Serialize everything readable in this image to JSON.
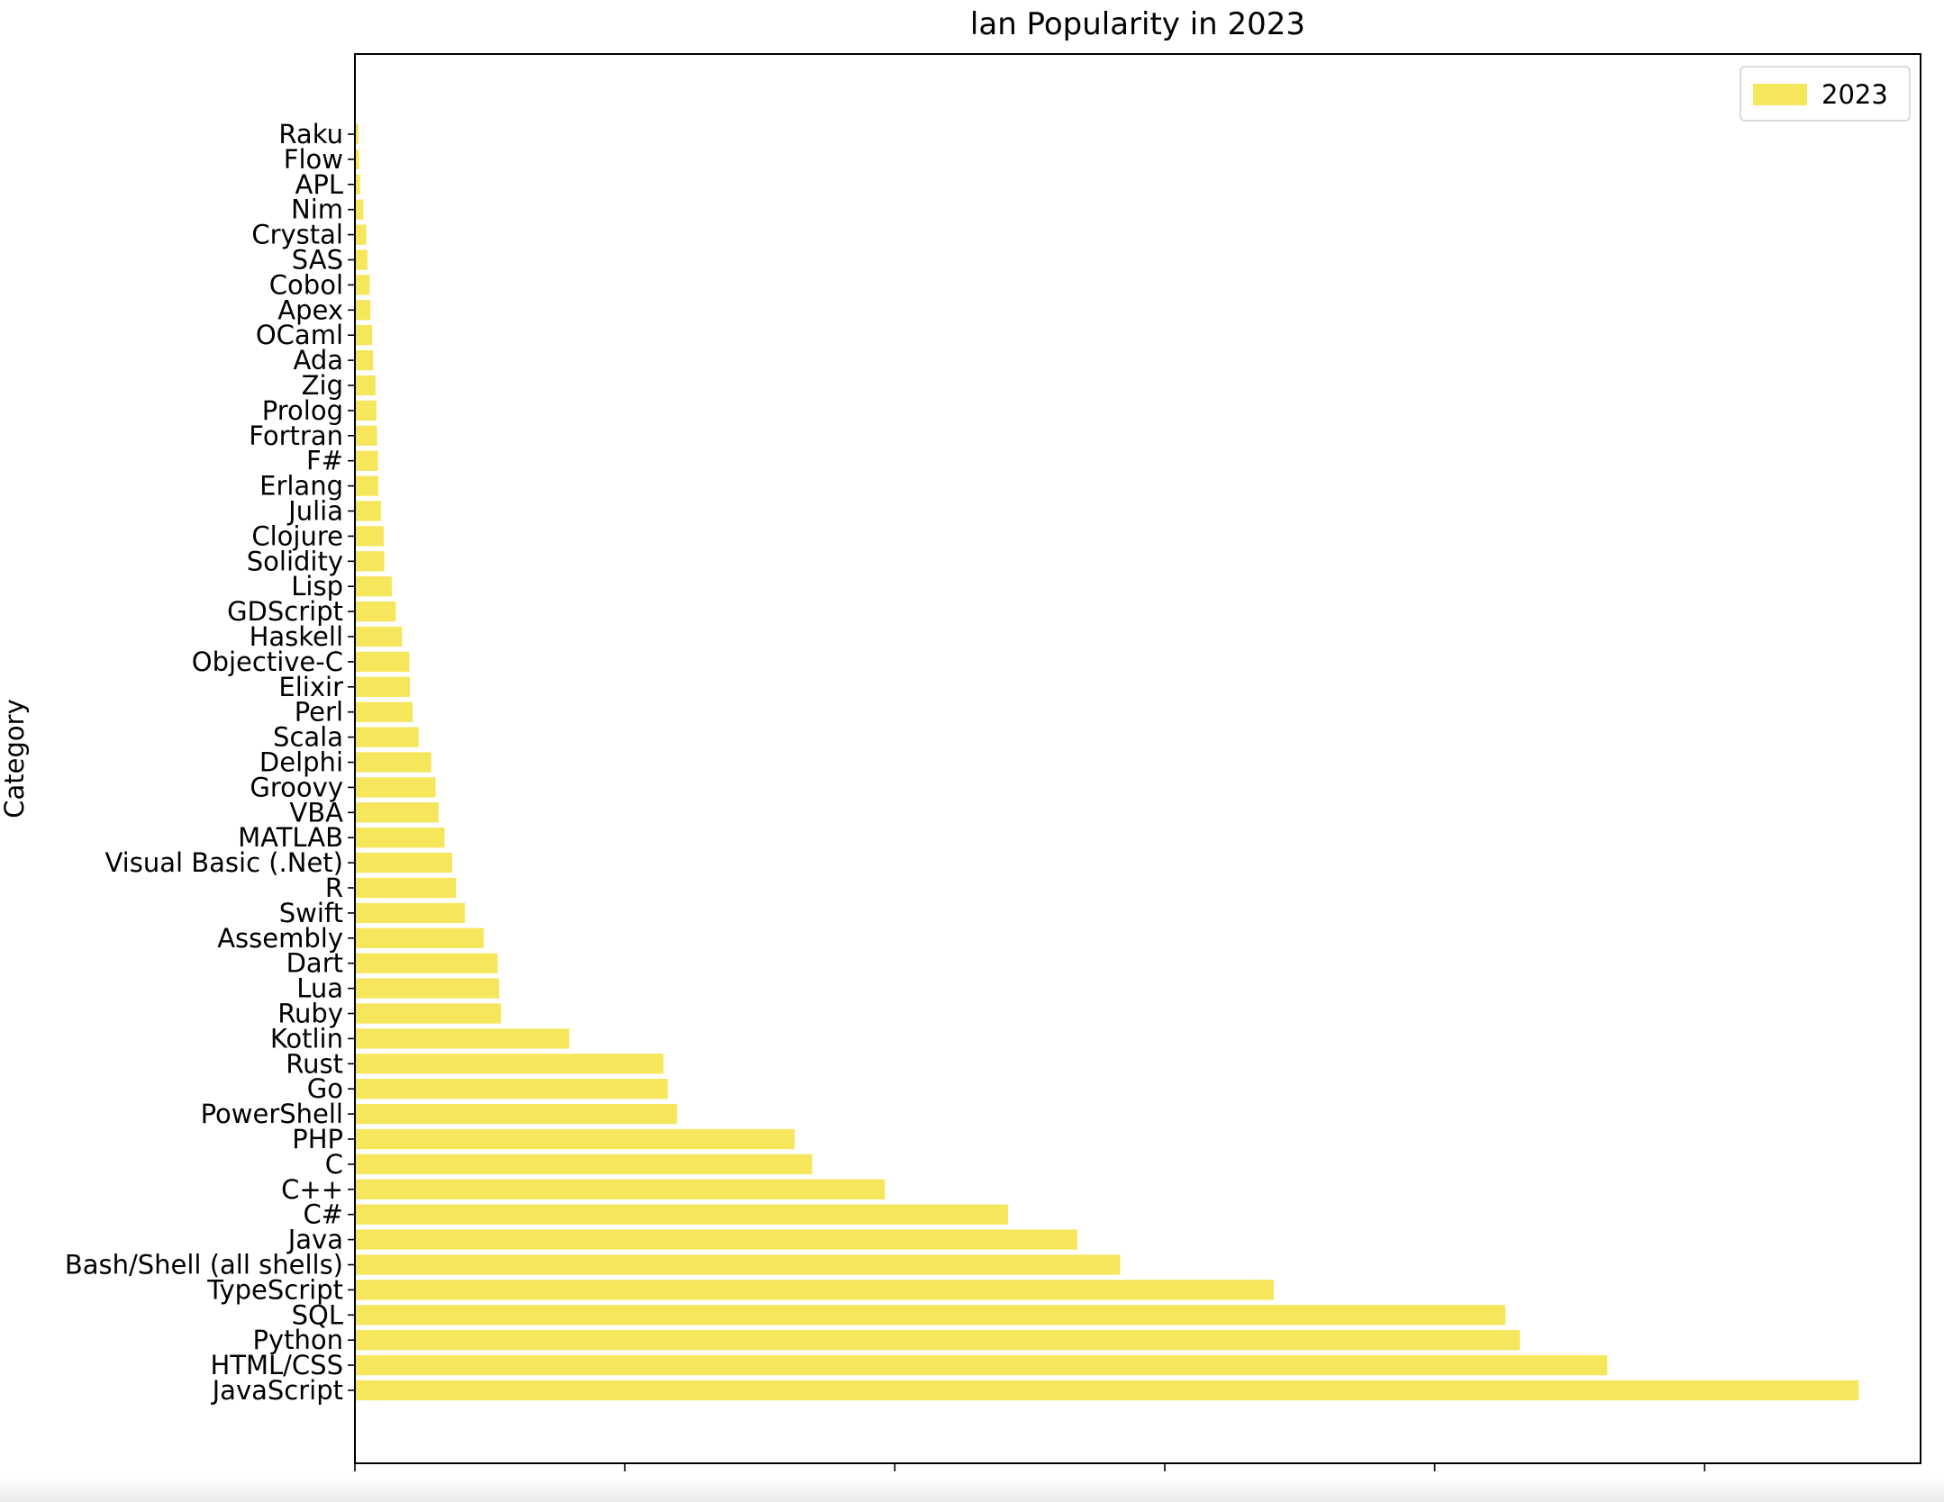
{
  "chart_data": {
    "type": "bar",
    "orientation": "horizontal",
    "title": "lan Popularity in 2023",
    "xlabel": "",
    "ylabel": "Category",
    "xlim": [
      0,
      58000
    ],
    "x_ticks": [
      0,
      10000,
      20000,
      30000,
      40000,
      50000
    ],
    "grid": false,
    "legend_position": "top-right",
    "bar_color": "#f5e65b",
    "series": [
      {
        "name": "2023",
        "color": "#f5e65b",
        "categories": [
          "JavaScript",
          "HTML/CSS",
          "Python",
          "SQL",
          "TypeScript",
          "Bash/Shell (all shells)",
          "Java",
          "C#",
          "C++",
          "C",
          "PHP",
          "PowerShell",
          "Go",
          "Rust",
          "Kotlin",
          "Ruby",
          "Lua",
          "Dart",
          "Assembly",
          "Swift",
          "R",
          "Visual Basic (.Net)",
          "MATLAB",
          "VBA",
          "Groovy",
          "Delphi",
          "Scala",
          "Perl",
          "Elixir",
          "Objective-C",
          "Haskell",
          "GDScript",
          "Lisp",
          "Solidity",
          "Clojure",
          "Julia",
          "Erlang",
          "F#",
          "Fortran",
          "Prolog",
          "Zig",
          "Ada",
          "OCaml",
          "Apex",
          "Cobol",
          "SAS",
          "Crystal",
          "Nim",
          "APL",
          "Flow",
          "Raku"
        ],
        "values": [
          55711,
          46396,
          43158,
          42623,
          34041,
          28351,
          26757,
          24193,
          19634,
          16940,
          16286,
          11935,
          11588,
          11429,
          7943,
          5411,
          5345,
          5288,
          4768,
          4077,
          3746,
          3603,
          3322,
          3098,
          2987,
          2829,
          2360,
          2136,
          2039,
          2016,
          1748,
          1513,
          1366,
          1086,
          1066,
          967,
          868,
          855,
          819,
          795,
          762,
          674,
          635,
          575,
          545,
          464,
          421,
          312,
          190,
          155,
          134
        ]
      }
    ]
  }
}
